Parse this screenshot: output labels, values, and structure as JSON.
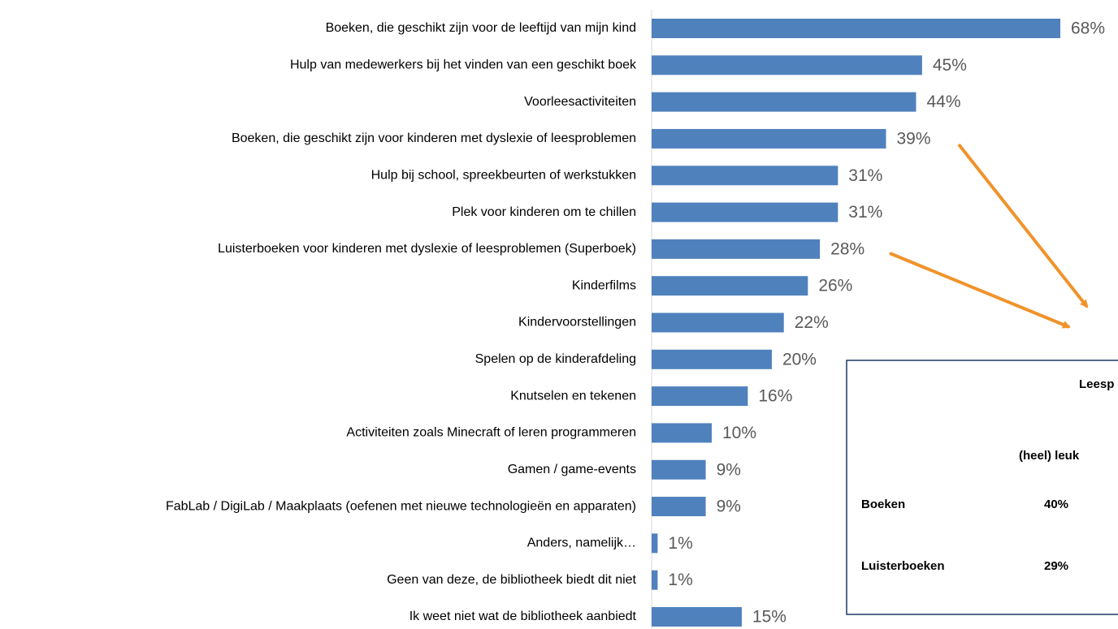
{
  "chart_data": {
    "type": "bar",
    "orientation": "horizontal",
    "categories": [
      "Boeken, die geschikt zijn voor de leeftijd van mijn kind",
      "Hulp van medewerkers bij het vinden van een geschikt boek",
      "Voorleesactiviteiten",
      "Boeken, die geschikt zijn voor kinderen met dyslexie of leesproblemen",
      "Hulp bij school, spreekbeurten of werkstukken",
      "Plek voor kinderen om te chillen",
      "Luisterboeken voor kinderen met dyslexie of leesproblemen (Superboek)",
      "Kinderfilms",
      "Kindervoorstellingen",
      "Spelen op de kinderafdeling",
      "Knutselen en tekenen",
      "Activiteiten zoals Minecraft of leren programmeren",
      "Gamen / game-events",
      "FabLab / DigiLab / Maakplaats (oefenen met nieuwe technologieën en apparaten)",
      "Anders, namelijk…",
      "Geen van deze, de bibliotheek biedt dit niet",
      "Ik weet niet wat de bibliotheek aanbiedt"
    ],
    "values": [
      68,
      45,
      44,
      39,
      31,
      31,
      28,
      26,
      22,
      20,
      16,
      10,
      9,
      9,
      1,
      1,
      15
    ],
    "value_labels": [
      "68%",
      "45%",
      "44%",
      "39%",
      "31%",
      "31%",
      "28%",
      "26%",
      "22%",
      "20%",
      "16%",
      "10%",
      "9%",
      "9%",
      "1%",
      "1%",
      "15%"
    ],
    "color": "#4f81bd",
    "xlim": [
      0,
      68
    ],
    "grid": false
  },
  "inset": {
    "header": "Leesp",
    "column": "(heel) leuk",
    "rows": [
      [
        "Boeken",
        "40%"
      ],
      [
        "Luisterboeken",
        "29%"
      ]
    ]
  }
}
